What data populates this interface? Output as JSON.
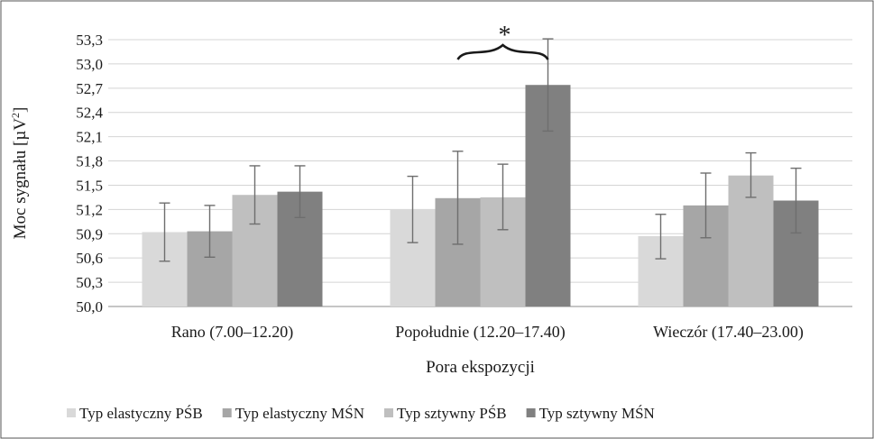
{
  "chart_data": {
    "type": "bar",
    "title": "",
    "xlabel": "Pora ekspozycji",
    "ylabel_main": "Moc sygnału [µV",
    "ylabel_sup": "2",
    "ylabel_close": "]",
    "ylim": [
      50.0,
      53.3
    ],
    "yticks": [
      50.0,
      50.3,
      50.6,
      50.9,
      51.2,
      51.5,
      51.8,
      52.1,
      52.4,
      52.7,
      53.0,
      53.3
    ],
    "ytick_labels": [
      "50,0",
      "50,3",
      "50,6",
      "50,9",
      "51,2",
      "51,5",
      "51,8",
      "52,1",
      "52,4",
      "52,7",
      "53,0",
      "53,3"
    ],
    "grid": true,
    "legend_position": "bottom",
    "categories": [
      "Rano (7.00–12.20)",
      "Popołudnie (12.20–17.40)",
      "Wieczór (17.40–23.00)"
    ],
    "series": [
      {
        "name": "Typ elastyczny PŚB",
        "color": "#d9d9d9",
        "values": [
          50.92,
          51.2,
          50.87
        ],
        "err_low": [
          50.56,
          50.79,
          50.59
        ],
        "err_high": [
          51.28,
          51.61,
          51.14
        ]
      },
      {
        "name": "Typ elastyczny MŚN",
        "color": "#a6a6a6",
        "values": [
          50.93,
          51.34,
          51.25
        ],
        "err_low": [
          50.61,
          50.77,
          50.85
        ],
        "err_high": [
          51.25,
          51.92,
          51.65
        ]
      },
      {
        "name": "Typ sztywny PŚB",
        "color": "#bfbfbf",
        "values": [
          51.38,
          51.35,
          51.62
        ],
        "err_low": [
          51.02,
          50.95,
          51.35
        ],
        "err_high": [
          51.74,
          51.76,
          51.9
        ]
      },
      {
        "name": "Typ sztywny MŚN",
        "color": "#808080",
        "values": [
          51.42,
          52.74,
          51.31
        ],
        "err_low": [
          51.1,
          52.17,
          50.91
        ],
        "err_high": [
          51.74,
          53.31,
          51.71
        ]
      }
    ],
    "annotation": {
      "text": "*",
      "category_index": 1
    }
  }
}
